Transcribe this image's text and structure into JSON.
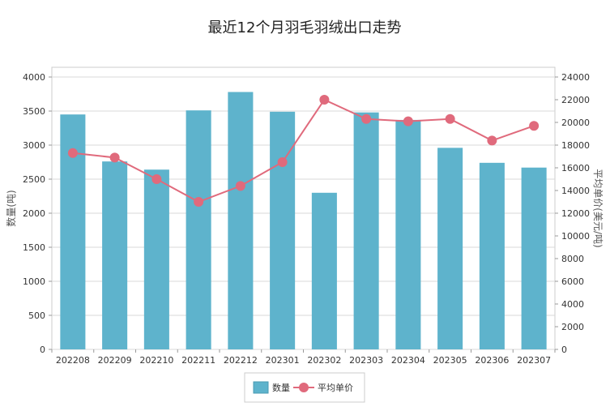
{
  "chart_data": {
    "type": "bar",
    "title": "最近12个月羽毛羽绒出口走势",
    "categories": [
      "202208",
      "202209",
      "202210",
      "202211",
      "202212",
      "202301",
      "202302",
      "202303",
      "202304",
      "202305",
      "202306",
      "202307"
    ],
    "series": [
      {
        "name": "数量",
        "type": "bar",
        "axis": "left",
        "color": "#5EB3CC",
        "values": [
          3450,
          2760,
          2640,
          3510,
          3780,
          3490,
          2300,
          3480,
          3370,
          2960,
          2740,
          2670
        ]
      },
      {
        "name": "平均单价",
        "type": "line",
        "axis": "right",
        "color": "#E06A7C",
        "values": [
          17300,
          16900,
          15000,
          13000,
          14400,
          16500,
          22000,
          20300,
          20100,
          20300,
          18400,
          19700
        ]
      }
    ],
    "ylabel": "数量(吨)",
    "ylabel_right": "平均单价(美元/吨)",
    "ylim": [
      0,
      4000
    ],
    "yticks": [
      "0",
      "500",
      "1000",
      "1500",
      "2000",
      "2500",
      "3000",
      "3500",
      "4000"
    ],
    "ylim_right": [
      0,
      24000
    ],
    "yticks_right": [
      "0",
      "2000",
      "4000",
      "6000",
      "8000",
      "10000",
      "12000",
      "14000",
      "16000",
      "18000",
      "20000",
      "22000",
      "24000"
    ],
    "grid": true,
    "legend_position": "bottom"
  }
}
